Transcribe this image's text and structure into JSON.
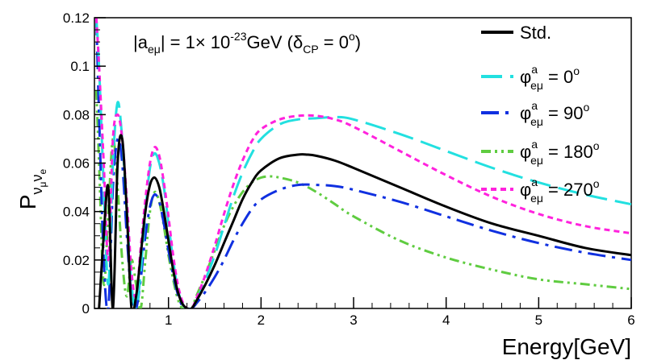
{
  "chart_data": {
    "type": "line",
    "title": "",
    "xlabel": "Energy[GeV]",
    "ylabel": {
      "main": "P",
      "sub1": "ν",
      "sub1sub": "μ",
      "sub2": "ν",
      "sub2sub": "e"
    },
    "xlim": [
      0.2,
      6
    ],
    "ylim": [
      0,
      0.12
    ],
    "x_ticks": [
      1,
      2,
      3,
      4,
      5,
      6
    ],
    "x_tick_labels": [
      "1",
      "2",
      "3",
      "4",
      "5",
      "6"
    ],
    "y_ticks": [
      0,
      0.02,
      0.04,
      0.06,
      0.08,
      0.1,
      0.12
    ],
    "y_tick_labels": [
      "0",
      "0.02",
      "0.04",
      "0.06",
      "0.08",
      "0.1",
      "0.12"
    ],
    "annotation": {
      "left": "|a",
      "left_sub": "eμ",
      "mid": "| = 1× 10",
      "exp": "-23",
      "right": "GeV (δ",
      "right_sub": "CP",
      "tail": " = 0",
      "tail_sup": "o",
      "close": ")"
    },
    "series": [
      {
        "name": "Std.",
        "color": "#000000",
        "dash": "solid",
        "legend": {
          "main": "Std."
        },
        "points": [
          [
            0.25,
            0.0
          ],
          [
            0.3,
            0.03
          ],
          [
            0.35,
            0.05
          ],
          [
            0.4,
            0.0
          ],
          [
            0.45,
            0.06
          ],
          [
            0.5,
            0.07
          ],
          [
            0.55,
            0.04
          ],
          [
            0.6,
            0.0
          ],
          [
            0.65,
            0.005
          ],
          [
            0.7,
            0.022
          ],
          [
            0.75,
            0.04
          ],
          [
            0.8,
            0.051
          ],
          [
            0.85,
            0.054
          ],
          [
            0.9,
            0.05
          ],
          [
            0.95,
            0.04
          ],
          [
            1.0,
            0.028
          ],
          [
            1.05,
            0.016
          ],
          [
            1.1,
            0.007
          ],
          [
            1.15,
            0.002
          ],
          [
            1.2,
            0.0
          ],
          [
            1.25,
            0.0
          ],
          [
            1.3,
            0.003
          ],
          [
            1.4,
            0.01
          ],
          [
            1.5,
            0.018
          ],
          [
            1.6,
            0.027
          ],
          [
            1.7,
            0.036
          ],
          [
            1.8,
            0.045
          ],
          [
            1.9,
            0.052
          ],
          [
            2.0,
            0.057
          ],
          [
            2.2,
            0.062
          ],
          [
            2.4,
            0.0635
          ],
          [
            2.5,
            0.0635
          ],
          [
            2.6,
            0.063
          ],
          [
            2.8,
            0.061
          ],
          [
            3.0,
            0.058
          ],
          [
            3.5,
            0.05
          ],
          [
            4.0,
            0.042
          ],
          [
            4.5,
            0.035
          ],
          [
            5.0,
            0.03
          ],
          [
            5.5,
            0.025
          ],
          [
            6.0,
            0.022
          ]
        ]
      },
      {
        "name": "φa eμ = 0o",
        "color": "#22e0e0",
        "dash": "long",
        "legend": {
          "main": "φ",
          "sup": "a",
          "sub": "eμ",
          "value": " = 0",
          "value_sup": "o"
        },
        "points": [
          [
            0.22,
            0.12
          ],
          [
            0.25,
            0.1
          ],
          [
            0.3,
            0.05
          ],
          [
            0.35,
            0.01
          ],
          [
            0.4,
            0.06
          ],
          [
            0.45,
            0.085
          ],
          [
            0.5,
            0.07
          ],
          [
            0.55,
            0.04
          ],
          [
            0.6,
            0.01
          ],
          [
            0.65,
            0.0
          ],
          [
            0.7,
            0.015
          ],
          [
            0.75,
            0.04
          ],
          [
            0.8,
            0.058
          ],
          [
            0.85,
            0.064
          ],
          [
            0.9,
            0.06
          ],
          [
            0.95,
            0.05
          ],
          [
            1.0,
            0.035
          ],
          [
            1.05,
            0.02
          ],
          [
            1.1,
            0.008
          ],
          [
            1.15,
            0.002
          ],
          [
            1.2,
            0.0
          ],
          [
            1.25,
            0.0
          ],
          [
            1.3,
            0.003
          ],
          [
            1.4,
            0.012
          ],
          [
            1.5,
            0.022
          ],
          [
            1.6,
            0.034
          ],
          [
            1.7,
            0.046
          ],
          [
            1.8,
            0.056
          ],
          [
            1.9,
            0.064
          ],
          [
            2.0,
            0.07
          ],
          [
            2.2,
            0.076
          ],
          [
            2.4,
            0.078
          ],
          [
            2.6,
            0.0785
          ],
          [
            2.8,
            0.079
          ],
          [
            3.0,
            0.078
          ],
          [
            3.5,
            0.072
          ],
          [
            4.0,
            0.065
          ],
          [
            4.5,
            0.058
          ],
          [
            5.0,
            0.052
          ],
          [
            5.5,
            0.047
          ],
          [
            6.0,
            0.043
          ]
        ]
      },
      {
        "name": "φa eμ = 90o",
        "color": "#1030e0",
        "dash": "dashdot",
        "legend": {
          "main": "φ",
          "sup": "a",
          "sub": "eμ",
          "value": " = 90",
          "value_sup": "o"
        },
        "points": [
          [
            0.22,
            0.12
          ],
          [
            0.25,
            0.08
          ],
          [
            0.3,
            0.02
          ],
          [
            0.35,
            0.0
          ],
          [
            0.4,
            0.05
          ],
          [
            0.45,
            0.07
          ],
          [
            0.5,
            0.06
          ],
          [
            0.55,
            0.03
          ],
          [
            0.6,
            0.005
          ],
          [
            0.65,
            0.0
          ],
          [
            0.7,
            0.012
          ],
          [
            0.75,
            0.03
          ],
          [
            0.8,
            0.042
          ],
          [
            0.85,
            0.047
          ],
          [
            0.9,
            0.044
          ],
          [
            0.95,
            0.035
          ],
          [
            1.0,
            0.024
          ],
          [
            1.05,
            0.014
          ],
          [
            1.1,
            0.006
          ],
          [
            1.15,
            0.001
          ],
          [
            1.2,
            0.0
          ],
          [
            1.25,
            0.0
          ],
          [
            1.3,
            0.002
          ],
          [
            1.4,
            0.007
          ],
          [
            1.5,
            0.013
          ],
          [
            1.6,
            0.02
          ],
          [
            1.7,
            0.028
          ],
          [
            1.8,
            0.035
          ],
          [
            1.9,
            0.041
          ],
          [
            2.0,
            0.045
          ],
          [
            2.2,
            0.049
          ],
          [
            2.4,
            0.051
          ],
          [
            2.6,
            0.051
          ],
          [
            2.8,
            0.0505
          ],
          [
            3.0,
            0.049
          ],
          [
            3.5,
            0.044
          ],
          [
            4.0,
            0.038
          ],
          [
            4.5,
            0.032
          ],
          [
            5.0,
            0.027
          ],
          [
            5.5,
            0.023
          ],
          [
            6.0,
            0.02
          ]
        ]
      },
      {
        "name": "φa eμ = 180o",
        "color": "#5fcc40",
        "dash": "dashdotdot",
        "legend": {
          "main": "φ",
          "sup": "a",
          "sub": "eμ",
          "value": " = 180",
          "value_sup": "o"
        },
        "points": [
          [
            0.22,
            0.09
          ],
          [
            0.25,
            0.06
          ],
          [
            0.3,
            0.01
          ],
          [
            0.35,
            0.04
          ],
          [
            0.4,
            0.07
          ],
          [
            0.45,
            0.05
          ],
          [
            0.5,
            0.02
          ],
          [
            0.55,
            0.005
          ],
          [
            0.6,
            0.02
          ],
          [
            0.65,
            0.01
          ],
          [
            0.7,
            0.0
          ],
          [
            0.75,
            0.02
          ],
          [
            0.8,
            0.04
          ],
          [
            0.85,
            0.048
          ],
          [
            0.9,
            0.044
          ],
          [
            0.95,
            0.034
          ],
          [
            1.0,
            0.022
          ],
          [
            1.05,
            0.012
          ],
          [
            1.1,
            0.004
          ],
          [
            1.15,
            0.0
          ],
          [
            1.2,
            0.0
          ],
          [
            1.25,
            0.0
          ],
          [
            1.3,
            0.005
          ],
          [
            1.4,
            0.014
          ],
          [
            1.5,
            0.024
          ],
          [
            1.6,
            0.034
          ],
          [
            1.7,
            0.042
          ],
          [
            1.8,
            0.048
          ],
          [
            1.9,
            0.052
          ],
          [
            2.0,
            0.054
          ],
          [
            2.1,
            0.0545
          ],
          [
            2.2,
            0.054
          ],
          [
            2.4,
            0.052
          ],
          [
            2.6,
            0.048
          ],
          [
            2.8,
            0.043
          ],
          [
            3.0,
            0.038
          ],
          [
            3.5,
            0.028
          ],
          [
            4.0,
            0.021
          ],
          [
            4.5,
            0.016
          ],
          [
            5.0,
            0.012
          ],
          [
            5.5,
            0.01
          ],
          [
            6.0,
            0.008
          ]
        ]
      },
      {
        "name": "φa eμ = 270o",
        "color": "#ff22dd",
        "dash": "short",
        "legend": {
          "main": "φ",
          "sup": "a",
          "sub": "eμ",
          "value": " = 270",
          "value_sup": "o"
        },
        "points": [
          [
            0.22,
            0.12
          ],
          [
            0.25,
            0.1
          ],
          [
            0.3,
            0.06
          ],
          [
            0.35,
            0.02
          ],
          [
            0.4,
            0.07
          ],
          [
            0.45,
            0.08
          ],
          [
            0.5,
            0.07
          ],
          [
            0.55,
            0.045
          ],
          [
            0.6,
            0.015
          ],
          [
            0.65,
            0.005
          ],
          [
            0.7,
            0.025
          ],
          [
            0.75,
            0.045
          ],
          [
            0.8,
            0.06
          ],
          [
            0.85,
            0.0665
          ],
          [
            0.9,
            0.063
          ],
          [
            0.95,
            0.052
          ],
          [
            1.0,
            0.038
          ],
          [
            1.05,
            0.022
          ],
          [
            1.1,
            0.01
          ],
          [
            1.15,
            0.003
          ],
          [
            1.2,
            0.0
          ],
          [
            1.25,
            0.0
          ],
          [
            1.3,
            0.004
          ],
          [
            1.4,
            0.014
          ],
          [
            1.5,
            0.026
          ],
          [
            1.6,
            0.039
          ],
          [
            1.7,
            0.051
          ],
          [
            1.8,
            0.061
          ],
          [
            1.9,
            0.069
          ],
          [
            2.0,
            0.074
          ],
          [
            2.2,
            0.078
          ],
          [
            2.4,
            0.0795
          ],
          [
            2.6,
            0.0795
          ],
          [
            2.8,
            0.078
          ],
          [
            3.0,
            0.075
          ],
          [
            3.5,
            0.065
          ],
          [
            4.0,
            0.055
          ],
          [
            4.5,
            0.046
          ],
          [
            5.0,
            0.039
          ],
          [
            5.5,
            0.034
          ],
          [
            6.0,
            0.031
          ]
        ]
      }
    ]
  }
}
